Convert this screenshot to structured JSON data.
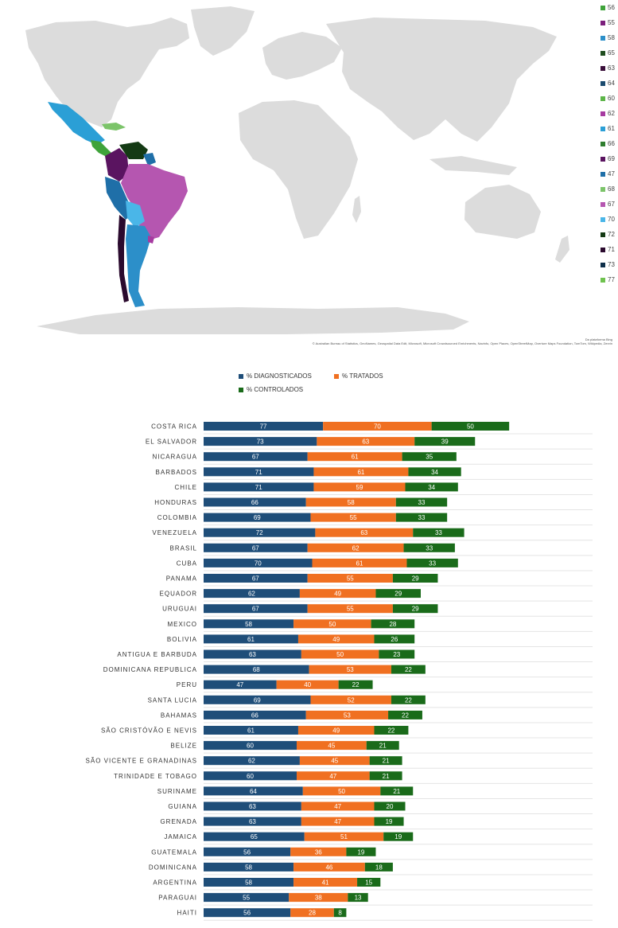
{
  "map": {
    "legend": [
      {
        "label": "56",
        "color": "#3fa33a"
      },
      {
        "label": "55",
        "color": "#7b1f7c"
      },
      {
        "label": "58",
        "color": "#2c8fc9"
      },
      {
        "label": "65",
        "color": "#1f4d1f"
      },
      {
        "label": "63",
        "color": "#3a0f3a"
      },
      {
        "label": "64",
        "color": "#1a4a6e"
      },
      {
        "label": "60",
        "color": "#5cb548"
      },
      {
        "label": "62",
        "color": "#a63aa0"
      },
      {
        "label": "61",
        "color": "#2b9fd6"
      },
      {
        "label": "66",
        "color": "#2e7d2e"
      },
      {
        "label": "69",
        "color": "#5a1460"
      },
      {
        "label": "47",
        "color": "#1f6fa8"
      },
      {
        "label": "68",
        "color": "#7cc46a"
      },
      {
        "label": "67",
        "color": "#b556b0"
      },
      {
        "label": "70",
        "color": "#4ab6e8"
      },
      {
        "label": "72",
        "color": "#143a14"
      },
      {
        "label": "71",
        "color": "#2b0a2e"
      },
      {
        "label": "73",
        "color": "#0e2f4a"
      },
      {
        "label": "77",
        "color": "#6fc24f"
      }
    ],
    "credit_line1": "Da plataforma Bing",
    "credit_line2": "© Australian Bureau of Statistics, GeoNames, Geospatial Data Edit, Microsoft, Microsoft Crowdsourced Enrichments, Navinfo, Open Places, OpenStreetMap, Overture Maps Foundation, TomTom, Wikipedia, Zenrin"
  },
  "chart_data": {
    "type": "bar",
    "orientation": "horizontal",
    "stacked": true,
    "legend": [
      "% DIAGNOSTICADOS",
      "% TRATADOS",
      "% CONTROLADOS"
    ],
    "colors": [
      "#1f4e79",
      "#f07021",
      "#1a6b1a"
    ],
    "categories": [
      "COSTA RICA",
      "EL SALVADOR",
      "NICARAGUA",
      "BARBADOS",
      "CHILE",
      "HONDURAS",
      "COLOMBIA",
      "VENEZUELA",
      "BRASIL",
      "CUBA",
      "PANAMA",
      "EQUADOR",
      "URUGUAI",
      "MEXICO",
      "BOLIVIA",
      "ANTIGUA E BARBUDA",
      "DOMINICANA REPUBLICA",
      "PERU",
      "SANTA LUCIA",
      "BAHAMAS",
      "SÃO CRISTÓVÃO E NEVIS",
      "BELIZE",
      "SÃO VICENTE E GRANADINAS",
      "TRINIDADE E TOBAGO",
      "SURINAME",
      "GUIANA",
      "GRENADA",
      "JAMAICA",
      "GUATEMALA",
      "DOMINICANA",
      "ARGENTINA",
      "PARAGUAI",
      "HAITI"
    ],
    "series": [
      {
        "name": "% DIAGNOSTICADOS",
        "values": [
          77,
          73,
          67,
          71,
          71,
          66,
          69,
          72,
          67,
          70,
          67,
          62,
          67,
          58,
          61,
          63,
          68,
          47,
          69,
          66,
          61,
          60,
          62,
          60,
          64,
          63,
          63,
          65,
          56,
          58,
          58,
          55,
          56
        ]
      },
      {
        "name": "% TRATADOS",
        "values": [
          70,
          63,
          61,
          61,
          59,
          58,
          55,
          63,
          62,
          61,
          55,
          49,
          55,
          50,
          49,
          50,
          53,
          40,
          52,
          53,
          49,
          45,
          45,
          47,
          50,
          47,
          47,
          51,
          36,
          46,
          41,
          38,
          28
        ]
      },
      {
        "name": "% CONTROLADOS",
        "values": [
          50,
          39,
          35,
          34,
          34,
          33,
          33,
          33,
          33,
          33,
          29,
          29,
          29,
          28,
          26,
          23,
          22,
          22,
          22,
          22,
          22,
          21,
          21,
          21,
          21,
          20,
          19,
          19,
          19,
          18,
          15,
          13,
          8
        ]
      }
    ]
  }
}
